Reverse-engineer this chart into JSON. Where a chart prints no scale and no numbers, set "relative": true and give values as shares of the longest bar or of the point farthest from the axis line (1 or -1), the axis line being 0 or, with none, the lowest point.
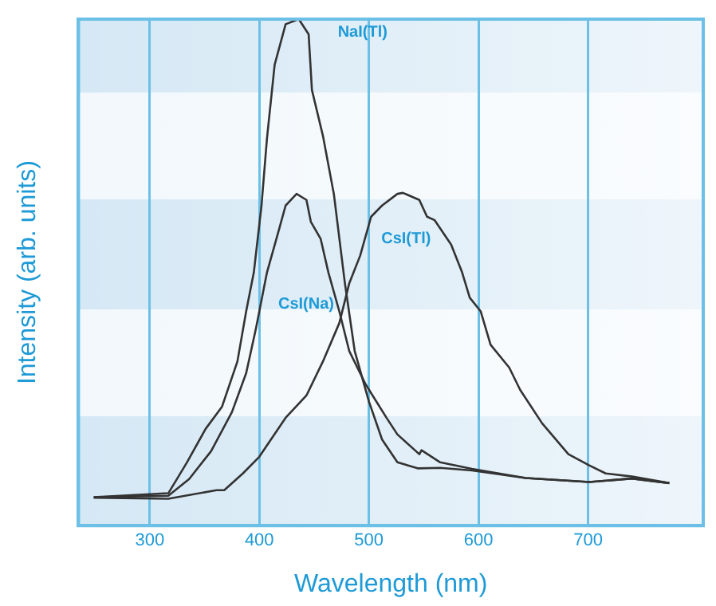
{
  "chart_data": {
    "type": "line",
    "xlabel": "Wavelength (nm)",
    "ylabel": "Intensity (arb. units)",
    "relative": true,
    "xlim": [
      235,
      805
    ],
    "xticks": [
      300,
      400,
      500,
      600,
      700
    ],
    "grid": "x",
    "legend": false,
    "marker": "none",
    "line_style": "solid",
    "series": [
      {
        "name": "NaI(Tl)",
        "color": "#333333",
        "x": [
          249,
          317,
          334,
          351,
          366,
          380,
          388,
          395,
          402,
          407,
          414,
          424,
          436,
          445,
          448,
          458,
          468,
          478,
          487,
          500,
          512,
          526,
          545,
          565,
          594,
          643,
          701,
          740,
          774
        ],
        "values": [
          0.056,
          0.064,
          0.125,
          0.191,
          0.235,
          0.324,
          0.423,
          0.5,
          0.632,
          0.765,
          0.91,
          0.99,
          1.0,
          0.97,
          0.86,
          0.77,
          0.655,
          0.48,
          0.345,
          0.245,
          0.17,
          0.125,
          0.113,
          0.114,
          0.109,
          0.094,
          0.086,
          0.093,
          0.084
        ]
      },
      {
        "name": "CsI(Na)",
        "color": "#333333",
        "x": [
          249,
          317,
          336,
          356,
          375,
          388,
          397,
          407,
          417,
          424,
          434,
          443,
          447,
          456,
          463,
          473,
          482,
          497,
          516,
          526,
          546,
          548,
          565,
          594,
          643,
          701,
          740,
          774
        ],
        "values": [
          0.056,
          0.059,
          0.092,
          0.147,
          0.224,
          0.301,
          0.39,
          0.5,
          0.577,
          0.632,
          0.655,
          0.643,
          0.6,
          0.566,
          0.5,
          0.423,
          0.345,
          0.279,
          0.213,
          0.18,
          0.141,
          0.149,
          0.125,
          0.112,
          0.094,
          0.086,
          0.093,
          0.084
        ]
      },
      {
        "name": "CsI(Tl)",
        "color": "#333333",
        "x": [
          249,
          317,
          361,
          368,
          385,
          400,
          424,
          443,
          458,
          473,
          482,
          492,
          502,
          512,
          526,
          531,
          546,
          553,
          560,
          575,
          585,
          592,
          602,
          611,
          628,
          638,
          658,
          682,
          701,
          716,
          740,
          774
        ],
        "values": [
          0.055,
          0.053,
          0.07,
          0.07,
          0.103,
          0.136,
          0.213,
          0.257,
          0.324,
          0.4,
          0.478,
          0.533,
          0.61,
          0.632,
          0.655,
          0.657,
          0.643,
          0.61,
          0.603,
          0.555,
          0.5,
          0.45,
          0.423,
          0.357,
          0.312,
          0.268,
          0.202,
          0.141,
          0.119,
          0.103,
          0.097,
          0.084
        ]
      }
    ]
  }
}
